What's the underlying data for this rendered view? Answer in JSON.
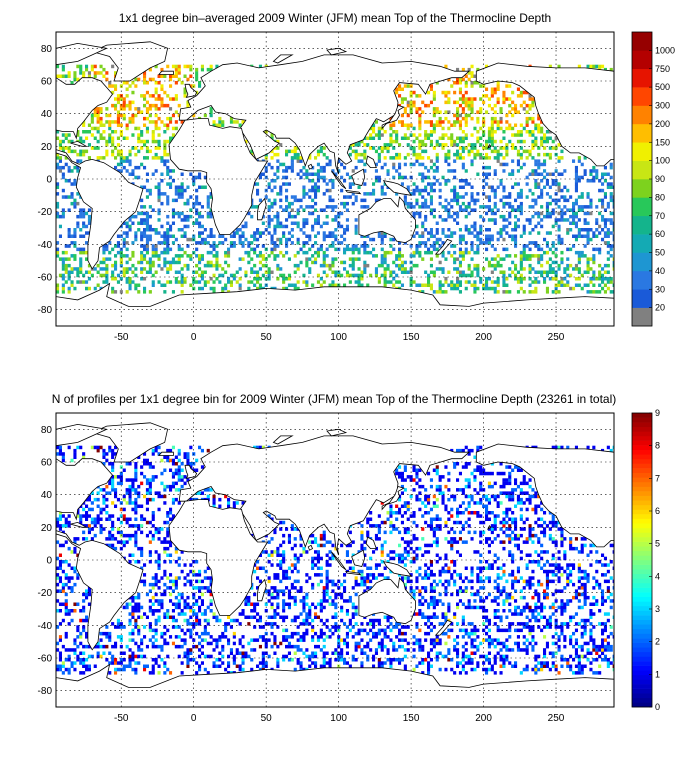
{
  "chart_data": [
    {
      "type": "heatmap",
      "title": "1x1 degree bin–averaged 2009 Winter (JFM) mean Top of the Thermocline Depth",
      "x_ticks": [
        -50,
        0,
        50,
        100,
        150,
        200,
        250
      ],
      "y_ticks": [
        80,
        60,
        40,
        20,
        0,
        -20,
        -40,
        -60,
        -80
      ],
      "xlim": [
        -95,
        290
      ],
      "ylim": [
        -90,
        90
      ],
      "grid": true,
      "colorbar": {
        "labels": [
          "20",
          "30",
          "40",
          "50",
          "60",
          "70",
          "80",
          "90",
          "100",
          "150",
          "200",
          "300",
          "500",
          "750",
          "1000"
        ],
        "colors": [
          "#808080",
          "#1a5ad8",
          "#2a78e2",
          "#1e96d2",
          "#14aab4",
          "#14b48c",
          "#28c85a",
          "#7dd21e",
          "#c8e614",
          "#f0f000",
          "#ffbe00",
          "#ff8200",
          "#ff4600",
          "#e61400",
          "#b40000",
          "#960000"
        ]
      }
    },
    {
      "type": "heatmap",
      "title": "N of profiles per 1x1 degree bin for 2009 Winter (JFM) mean Top of the Thermocline Depth  (23261 in total)",
      "x_ticks": [
        -50,
        0,
        50,
        100,
        150,
        200,
        250
      ],
      "y_ticks": [
        80,
        60,
        40,
        20,
        0,
        -20,
        -40,
        -60,
        -80
      ],
      "xlim": [
        -95,
        290
      ],
      "ylim": [
        -90,
        90
      ],
      "grid": true,
      "colorbar": {
        "labels": [
          "0",
          "1",
          "2",
          "3",
          "4",
          "5",
          "6",
          "7",
          "8",
          "9"
        ],
        "range": [
          0,
          9
        ],
        "colormap": "jet"
      }
    }
  ]
}
